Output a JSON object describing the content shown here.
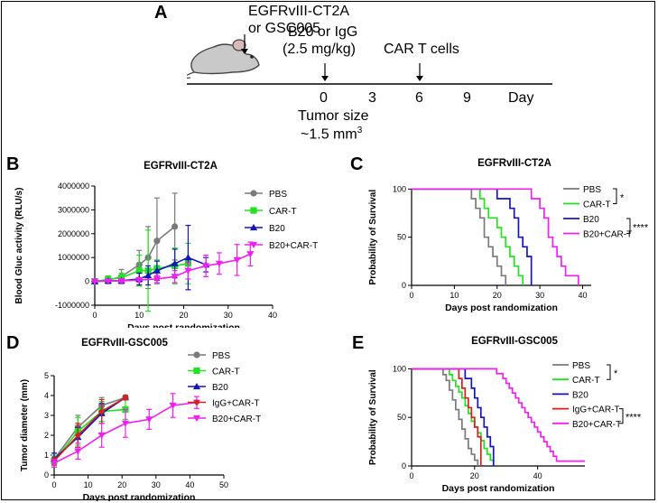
{
  "panel_labels": {
    "A": "A",
    "B": "B",
    "C": "C",
    "D": "D",
    "E": "E"
  },
  "timeline": {
    "injection_line1": "EGFRvIII-CT2A",
    "injection_line2": "or GSC005",
    "treatment_line1": "B20 or IgG",
    "treatment_line2": "(2.5 mg/kg)",
    "car_t": "CAR T cells",
    "ticks": [
      "0",
      "3",
      "6",
      "9"
    ],
    "axis_unit": "Day",
    "tumor_size_line1": "Tumor size",
    "tumor_size_line2": "~1.5 mm",
    "tumor_size_exp": "3"
  },
  "colors": {
    "PBS": "#7a7a7a",
    "CAR-T": "#22e022",
    "B20": "#1515bb",
    "IgG+CAR-T": "#d42020",
    "B20+CAR-T": "#ee22ee"
  },
  "chart_data": [
    {
      "id": "B",
      "type": "line",
      "title": "EGFRvIII-CT2A",
      "xlabel": "Days post randomization",
      "ylabel": "Blood Gluc activity (RLU/s)",
      "xlim": [
        0,
        40
      ],
      "ylim": [
        -1000000,
        4000000
      ],
      "xticks": [
        "0",
        "10",
        "20",
        "30",
        "40"
      ],
      "yticks": [
        "-1000000",
        "0",
        "1000000",
        "2000000",
        "3000000",
        "4000000"
      ],
      "legend_position": "right",
      "series": [
        {
          "name": "PBS",
          "marker": "circle",
          "x": [
            0,
            3,
            6,
            10,
            12,
            14,
            18
          ],
          "y": [
            0,
            50000,
            200000,
            700000,
            1000000,
            1700000,
            2300000
          ],
          "err": [
            50000,
            150000,
            300000,
            600000,
            1300000,
            1800000,
            1400000
          ]
        },
        {
          "name": "CAR-T",
          "marker": "square",
          "x": [
            0,
            3,
            6,
            10,
            12,
            14,
            18,
            21
          ],
          "y": [
            0,
            80000,
            150000,
            450000,
            450000,
            550000,
            650000,
            750000
          ],
          "err": [
            60000,
            150000,
            200000,
            650000,
            1700000,
            350000,
            750000,
            850000
          ]
        },
        {
          "name": "B20",
          "marker": "triangle",
          "x": [
            0,
            3,
            6,
            10,
            12,
            14,
            18,
            21,
            25
          ],
          "y": [
            0,
            20000,
            30000,
            100000,
            250000,
            450000,
            750000,
            1000000,
            700000
          ],
          "err": [
            30000,
            60000,
            80000,
            250000,
            400000,
            400000,
            600000,
            1350000,
            300000
          ]
        },
        {
          "name": "B20+CAR-T",
          "marker": "triangle-down",
          "x": [
            0,
            3,
            6,
            10,
            14,
            18,
            21,
            25,
            28,
            32,
            35
          ],
          "y": [
            0,
            10000,
            20000,
            60000,
            100000,
            200000,
            450000,
            650000,
            750000,
            900000,
            1150000
          ],
          "err": [
            20000,
            30000,
            50000,
            100000,
            150000,
            250000,
            350000,
            450000,
            450000,
            650000,
            500000
          ]
        }
      ]
    },
    {
      "id": "C",
      "type": "line",
      "title": "EGFRvIII-CT2A",
      "xlabel": "Days post randomization",
      "ylabel": "Probability of Survival",
      "xlim": [
        0,
        42
      ],
      "ylim": [
        0,
        105
      ],
      "xticks": [
        "0",
        "10",
        "20",
        "30",
        "40"
      ],
      "yticks": [
        "0",
        "50",
        "100"
      ],
      "legend_position": "right",
      "significance": [
        "*",
        "****"
      ],
      "series": [
        {
          "name": "PBS",
          "steps": [
            [
              0,
              100
            ],
            [
              14,
              90
            ],
            [
              15,
              80
            ],
            [
              16,
              70
            ],
            [
              17,
              50
            ],
            [
              18,
              40
            ],
            [
              19,
              30
            ],
            [
              20,
              20
            ],
            [
              21,
              10
            ],
            [
              22,
              0
            ]
          ]
        },
        {
          "name": "CAR-T",
          "steps": [
            [
              0,
              100
            ],
            [
              16,
              90
            ],
            [
              17,
              80
            ],
            [
              18,
              70
            ],
            [
              20,
              60
            ],
            [
              21,
              50
            ],
            [
              22,
              40
            ],
            [
              23,
              30
            ],
            [
              24,
              20
            ],
            [
              25,
              10
            ],
            [
              26,
              0
            ]
          ]
        },
        {
          "name": "B20",
          "steps": [
            [
              0,
              100
            ],
            [
              20,
              90
            ],
            [
              23,
              80
            ],
            [
              24,
              70
            ],
            [
              25,
              50
            ],
            [
              26,
              40
            ],
            [
              27,
              30
            ],
            [
              28,
              0
            ]
          ]
        },
        {
          "name": "B20+CAR-T",
          "steps": [
            [
              0,
              100
            ],
            [
              28,
              90
            ],
            [
              30,
              80
            ],
            [
              31,
              70
            ],
            [
              32,
              50
            ],
            [
              33,
              40
            ],
            [
              34,
              30
            ],
            [
              35,
              20
            ],
            [
              36,
              10
            ],
            [
              39,
              0
            ]
          ]
        }
      ]
    },
    {
      "id": "D",
      "type": "line",
      "title": "EGFRvIII-GSC005",
      "xlabel": "Days post randomization",
      "ylabel": "Tumor diameter (mm)",
      "xlim": [
        0,
        50
      ],
      "ylim": [
        0,
        5
      ],
      "xticks": [
        "0",
        "10",
        "20",
        "30",
        "40",
        "50"
      ],
      "yticks": [
        "0",
        "1",
        "2",
        "3",
        "4",
        "5"
      ],
      "legend_position": "right",
      "series": [
        {
          "name": "PBS",
          "marker": "circle",
          "x": [
            0,
            7,
            14,
            21
          ],
          "y": [
            0.8,
            2.4,
            3.5,
            3.9
          ],
          "err": [
            0.3,
            0.6,
            0.4,
            0.1
          ]
        },
        {
          "name": "CAR-T",
          "marker": "square",
          "x": [
            0,
            7,
            14,
            21
          ],
          "y": [
            0.7,
            2.2,
            3.2,
            3.3
          ],
          "err": [
            0.3,
            0.7,
            0.5,
            0.5
          ]
        },
        {
          "name": "B20",
          "marker": "triangle",
          "x": [
            0,
            7,
            14,
            21
          ],
          "y": [
            0.8,
            1.9,
            3.1,
            3.9
          ],
          "err": [
            0.3,
            0.5,
            0.5,
            0.1
          ]
        },
        {
          "name": "IgG+CAR-T",
          "marker": "diamond",
          "x": [
            0,
            7,
            14,
            21
          ],
          "y": [
            0.7,
            2.0,
            3.2,
            3.9
          ],
          "err": [
            0.2,
            0.6,
            0.6,
            0.1
          ]
        },
        {
          "name": "B20+CAR-T",
          "marker": "triangle-down",
          "x": [
            0,
            7,
            14,
            21,
            28,
            35,
            42
          ],
          "y": [
            0.6,
            1.2,
            2.0,
            2.6,
            2.8,
            3.5,
            3.65
          ],
          "err": [
            0.2,
            0.4,
            0.6,
            0.7,
            0.5,
            0.6,
            0.3
          ]
        }
      ]
    },
    {
      "id": "E",
      "type": "line",
      "title": "EGFRvIII-GSC005",
      "xlabel": "Days post randomization",
      "ylabel": "Probability of Survival",
      "xlim": [
        0,
        55
      ],
      "ylim": [
        0,
        105
      ],
      "xticks": [
        "0",
        "20",
        "40"
      ],
      "yticks": [
        "0",
        "50",
        "100"
      ],
      "legend_position": "right",
      "significance": [
        "*",
        "****"
      ],
      "series": [
        {
          "name": "PBS",
          "steps": [
            [
              0,
              100
            ],
            [
              10,
              94
            ],
            [
              11,
              88
            ],
            [
              12,
              78
            ],
            [
              13,
              68
            ],
            [
              14,
              58
            ],
            [
              15,
              48
            ],
            [
              16,
              38
            ],
            [
              17,
              28
            ],
            [
              18,
              18
            ],
            [
              19,
              12
            ],
            [
              20,
              6
            ],
            [
              21,
              0
            ]
          ]
        },
        {
          "name": "CAR-T",
          "steps": [
            [
              0,
              100
            ],
            [
              12,
              94
            ],
            [
              13,
              88
            ],
            [
              14,
              82
            ],
            [
              15,
              76
            ],
            [
              16,
              70
            ],
            [
              17,
              62
            ],
            [
              18,
              54
            ],
            [
              19,
              46
            ],
            [
              20,
              40
            ],
            [
              21,
              34
            ],
            [
              22,
              26
            ],
            [
              23,
              18
            ],
            [
              24,
              12
            ],
            [
              25,
              6
            ],
            [
              26,
              0
            ]
          ]
        },
        {
          "name": "B20",
          "steps": [
            [
              0,
              100
            ],
            [
              17,
              90
            ],
            [
              19,
              80
            ],
            [
              20,
              70
            ],
            [
              21,
              60
            ],
            [
              22,
              50
            ],
            [
              23,
              40
            ],
            [
              24,
              30
            ],
            [
              25,
              20
            ],
            [
              26,
              0
            ]
          ]
        },
        {
          "name": "IgG+CAR-T",
          "steps": [
            [
              0,
              100
            ],
            [
              15,
              90
            ],
            [
              16,
              80
            ],
            [
              17,
              70
            ],
            [
              18,
              60
            ],
            [
              19,
              50
            ],
            [
              20,
              40
            ],
            [
              21,
              30
            ],
            [
              22,
              0
            ]
          ]
        },
        {
          "name": "B20+CAR-T",
          "steps": [
            [
              0,
              100
            ],
            [
              27,
              95
            ],
            [
              29,
              90
            ],
            [
              30,
              85
            ],
            [
              31,
              80
            ],
            [
              32,
              75
            ],
            [
              33,
              70
            ],
            [
              34,
              65
            ],
            [
              35,
              60
            ],
            [
              36,
              55
            ],
            [
              37,
              50
            ],
            [
              38,
              45
            ],
            [
              39,
              40
            ],
            [
              40,
              35
            ],
            [
              41,
              30
            ],
            [
              42,
              25
            ],
            [
              43,
              20
            ],
            [
              44,
              15
            ],
            [
              45,
              10
            ],
            [
              46,
              5
            ],
            [
              55,
              5
            ]
          ]
        }
      ]
    }
  ]
}
